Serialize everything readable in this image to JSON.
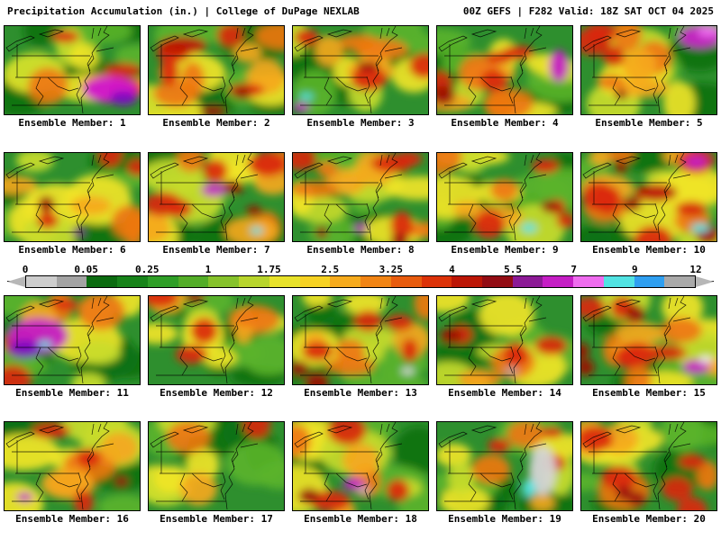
{
  "header": {
    "left": "Precipitation Accumulation (in.) | College of DuPage NEXLAB",
    "right": "00Z GEFS | F282 Valid: 18Z SAT OCT 04 2025"
  },
  "colorbar": {
    "ticks": [
      "0",
      "0.05",
      "0.25",
      "1",
      "1.75",
      "2.5",
      "3.25",
      "4",
      "5.5",
      "7",
      "9",
      "12"
    ],
    "segment_colors": [
      "#cdcdcd",
      "#a3a3a3",
      "#0b6b10",
      "#17831a",
      "#2f9e27",
      "#53ad28",
      "#86c22b",
      "#b8d52c",
      "#e8e22a",
      "#f6d223",
      "#f6ab1d",
      "#f18414",
      "#e85c0e",
      "#dc3208",
      "#bc1606",
      "#930c14",
      "#8c1a96",
      "#c51ec5",
      "#ef6cef",
      "#52e3e3",
      "#2f9ff0",
      "#a9a9a9"
    ],
    "arrow_color": "#b7b7b7"
  },
  "members": [
    {
      "number": 1,
      "label": "Ensemble Member: 1"
    },
    {
      "number": 2,
      "label": "Ensemble Member: 2"
    },
    {
      "number": 3,
      "label": "Ensemble Member: 3"
    },
    {
      "number": 4,
      "label": "Ensemble Member: 4"
    },
    {
      "number": 5,
      "label": "Ensemble Member: 5"
    },
    {
      "number": 6,
      "label": "Ensemble Member: 6"
    },
    {
      "number": 7,
      "label": "Ensemble Member: 7"
    },
    {
      "number": 8,
      "label": "Ensemble Member: 8"
    },
    {
      "number": 9,
      "label": "Ensemble Member: 9"
    },
    {
      "number": 10,
      "label": "Ensemble Member: 10"
    },
    {
      "number": 11,
      "label": "Ensemble Member: 11"
    },
    {
      "number": 12,
      "label": "Ensemble Member: 12"
    },
    {
      "number": 13,
      "label": "Ensemble Member: 13"
    },
    {
      "number": 14,
      "label": "Ensemble Member: 14"
    },
    {
      "number": 15,
      "label": "Ensemble Member: 15"
    },
    {
      "number": 16,
      "label": "Ensemble Member: 16"
    },
    {
      "number": 17,
      "label": "Ensemble Member: 17"
    },
    {
      "number": 18,
      "label": "Ensemble Member: 18"
    },
    {
      "number": 19,
      "label": "Ensemble Member: 19"
    },
    {
      "number": 20,
      "label": "Ensemble Member: 20"
    }
  ]
}
